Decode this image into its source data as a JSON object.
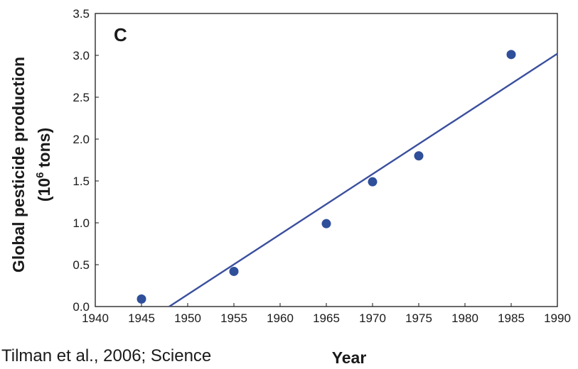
{
  "chart_data": {
    "type": "scatter",
    "panel_label": "C",
    "xlabel": "Year",
    "ylabel_line1": "Global pesticide production",
    "ylabel_line2_prefix": "(10",
    "ylabel_line2_exp": "6",
    "ylabel_line2_suffix": " tons)",
    "xlim": [
      1940,
      1990
    ],
    "ylim": [
      0,
      3.5
    ],
    "xticks": [
      "1940",
      "1945",
      "1950",
      "1955",
      "1960",
      "1965",
      "1970",
      "1975",
      "1980",
      "1985",
      "1990"
    ],
    "yticks": [
      "0.0",
      "0.5",
      "1.0",
      "1.5",
      "2.0",
      "2.5",
      "3.0",
      "3.5"
    ],
    "grid": false,
    "series": [
      {
        "x": [
          1945,
          1955,
          1965,
          1970,
          1975,
          1985
        ],
        "y": [
          0.09,
          0.42,
          0.99,
          1.49,
          1.8,
          3.01
        ]
      }
    ],
    "trendline": {
      "x": [
        1948,
        1990
      ],
      "y": [
        0.0,
        3.02
      ]
    },
    "colors": {
      "points": "#2f4f9a",
      "line": "#3a4f9e",
      "axes": "#1a1a1a"
    }
  },
  "citation": "Tilman et al., 2006; Science"
}
